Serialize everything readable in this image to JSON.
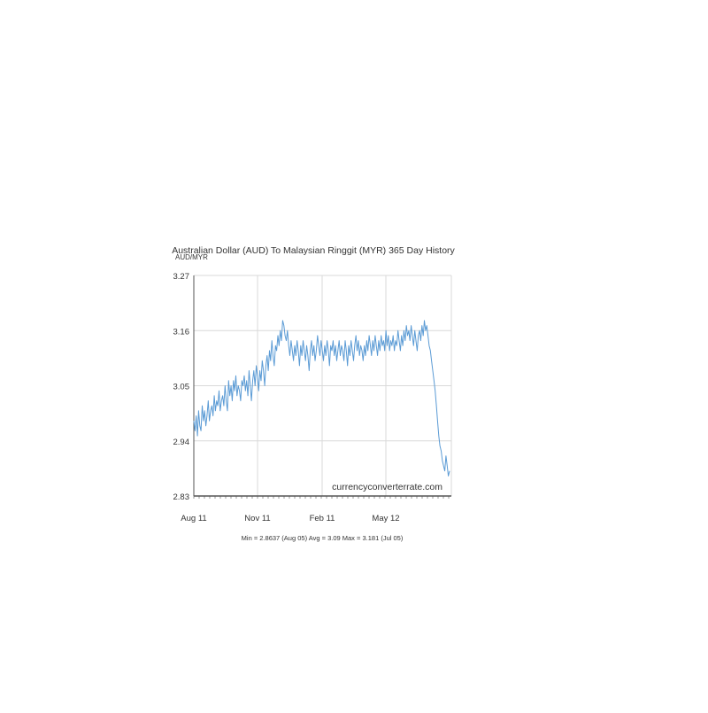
{
  "chart_data": {
    "type": "line",
    "title": "Australian Dollar (AUD) To Malaysian Ringgit (MYR) 365 Day History",
    "ylabel": "AUD/MYR",
    "xlabel": "",
    "y_ticks": [
      "3.27",
      "3.16",
      "3.05",
      "2.94",
      "2.83"
    ],
    "x_ticks": [
      "Aug 11",
      "Nov 11",
      "Feb 11",
      "May 12"
    ],
    "ylim": [
      2.83,
      3.27
    ],
    "grid": true,
    "watermark": "currencyconverterrate.com",
    "summary": "Min = 2.8637 (Aug 05) Avg = 3.09 Max = 3.181 (Jul 05)",
    "colors": {
      "line": "#5b9bd5",
      "grid": "#d9d9d9",
      "axis": "#555555"
    },
    "series": [
      {
        "name": "",
        "values": [
          2.98,
          2.96,
          2.99,
          2.95,
          3.0,
          2.97,
          2.96,
          3.01,
          2.98,
          3.0,
          2.97,
          2.99,
          3.02,
          2.98,
          3.0,
          3.01,
          2.99,
          3.03,
          3.0,
          3.02,
          3.01,
          3.04,
          3.0,
          3.02,
          3.03,
          3.01,
          3.05,
          3.02,
          3.0,
          3.06,
          3.03,
          3.05,
          3.02,
          3.06,
          3.04,
          3.07,
          3.03,
          3.05,
          3.04,
          3.02,
          3.06,
          3.05,
          3.07,
          3.04,
          3.06,
          3.03,
          3.08,
          3.05,
          3.02,
          3.06,
          3.08,
          3.05,
          3.09,
          3.07,
          3.04,
          3.08,
          3.06,
          3.1,
          3.08,
          3.05,
          3.09,
          3.11,
          3.08,
          3.12,
          3.1,
          3.14,
          3.11,
          3.09,
          3.13,
          3.12,
          3.15,
          3.13,
          3.16,
          3.14,
          3.18,
          3.17,
          3.15,
          3.14,
          3.16,
          3.13,
          3.11,
          3.14,
          3.12,
          3.1,
          3.13,
          3.11,
          3.14,
          3.12,
          3.09,
          3.13,
          3.11,
          3.14,
          3.12,
          3.1,
          3.13,
          3.11,
          3.08,
          3.12,
          3.14,
          3.11,
          3.13,
          3.1,
          3.12,
          3.15,
          3.13,
          3.11,
          3.14,
          3.12,
          3.1,
          3.13,
          3.11,
          3.14,
          3.12,
          3.09,
          3.13,
          3.12,
          3.14,
          3.11,
          3.13,
          3.1,
          3.12,
          3.14,
          3.11,
          3.13,
          3.12,
          3.1,
          3.14,
          3.12,
          3.09,
          3.13,
          3.11,
          3.14,
          3.12,
          3.1,
          3.13,
          3.15,
          3.12,
          3.14,
          3.11,
          3.13,
          3.12,
          3.1,
          3.13,
          3.11,
          3.14,
          3.12,
          3.15,
          3.13,
          3.11,
          3.14,
          3.12,
          3.15,
          3.13,
          3.11,
          3.14,
          3.12,
          3.15,
          3.13,
          3.14,
          3.12,
          3.16,
          3.13,
          3.15,
          3.12,
          3.14,
          3.13,
          3.15,
          3.12,
          3.14,
          3.13,
          3.16,
          3.14,
          3.12,
          3.15,
          3.13,
          3.16,
          3.14,
          3.17,
          3.15,
          3.16,
          3.14,
          3.17,
          3.15,
          3.13,
          3.16,
          3.14,
          3.12,
          3.15,
          3.16,
          3.14,
          3.17,
          3.15,
          3.18,
          3.16,
          3.17,
          3.15,
          3.13,
          3.12,
          3.1,
          3.08,
          3.06,
          3.04,
          3.01,
          2.98,
          2.95,
          2.93,
          2.92,
          2.9,
          2.89,
          2.88,
          2.91,
          2.89,
          2.87,
          2.88
        ]
      }
    ]
  }
}
